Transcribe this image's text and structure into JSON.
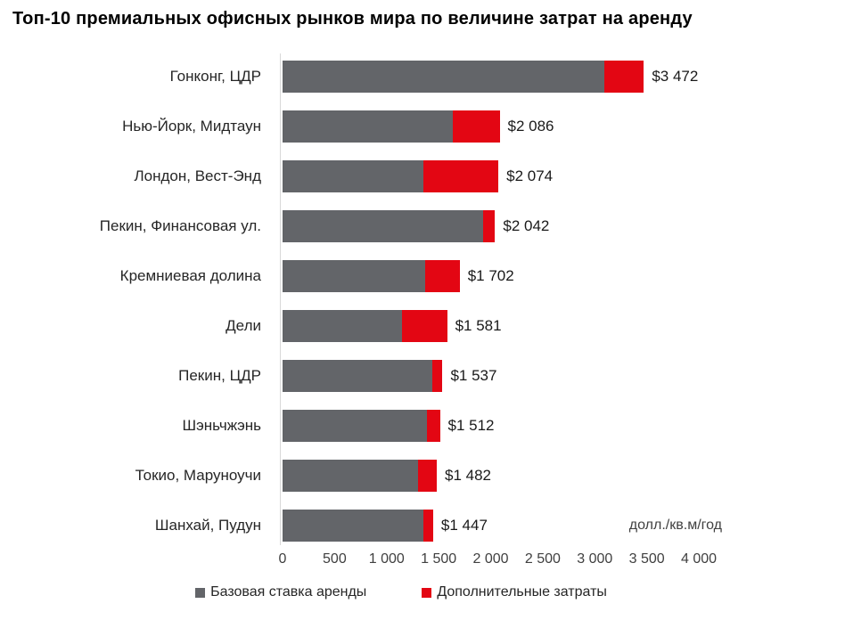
{
  "title": "Топ-10 премиальных офисных рынков мира по величине затрат на аренду",
  "colors": {
    "base_rent": "#636569",
    "additional_costs": "#e30613",
    "axis_line": "#d9d9d9",
    "text": "#262626",
    "title_text": "#000000"
  },
  "chart_data": {
    "type": "bar",
    "orientation": "horizontal",
    "stacked": true,
    "title": "Топ-10 премиальных офисных рынков мира по величине затрат на аренду",
    "xlabel": "долл./кв.м/год",
    "ylabel": "",
    "xlim": [
      0,
      4000
    ],
    "grid": false,
    "legend_position": "bottom",
    "categories": [
      "Гонконг, ЦДР",
      "Нью-Йорк, Мидтаун",
      "Лондон, Вест-Энд",
      "Пекин, Финансовая ул.",
      "Кремниевая долина",
      "Дели",
      "Пекин, ЦДР",
      "Шэньчжэнь",
      "Токио, Маруноучи",
      "Шанхай, Пудун"
    ],
    "series": [
      {
        "name": "Базовая ставка аренды",
        "color": "#636569",
        "values": [
          3095,
          1635,
          1357,
          1930,
          1367,
          1151,
          1443,
          1388,
          1299,
          1354
        ]
      },
      {
        "name": "Дополнительные затраты",
        "color": "#e30613",
        "values": [
          377,
          451,
          717,
          112,
          335,
          430,
          94,
          124,
          183,
          93
        ]
      }
    ],
    "totals": [
      3472,
      2086,
      2074,
      2042,
      1702,
      1581,
      1537,
      1512,
      1482,
      1447
    ],
    "total_labels": [
      "$3 472",
      "$2 086",
      "$2 074",
      "$2 042",
      "$1 702",
      "$1 581",
      "$1 537",
      "$1 512",
      "$1 482",
      "$1 447"
    ],
    "x_ticks": [
      0,
      500,
      1000,
      1500,
      2000,
      2500,
      3000,
      3500,
      4000
    ],
    "x_tick_labels": [
      "0",
      "500",
      "1 000",
      "1 500",
      "2 000",
      "2 500",
      "3 000",
      "3 500",
      "4 000"
    ],
    "unit_label": "долл./кв.м/год",
    "legend": [
      "Базовая ставка аренды",
      "Дополнительные затраты"
    ]
  }
}
